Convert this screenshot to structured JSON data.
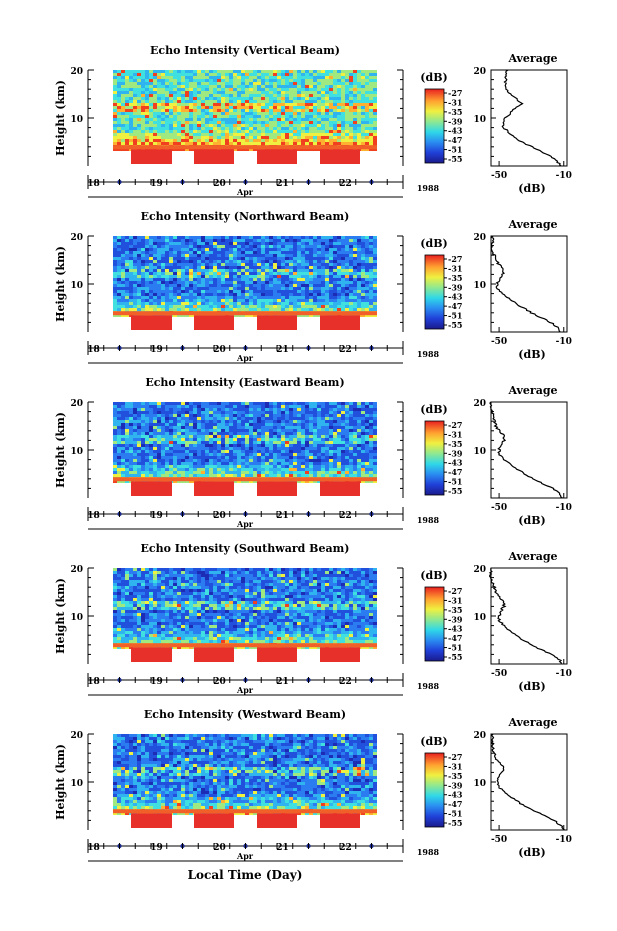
{
  "figure": {
    "xlabel": "Local Time (Day)",
    "year": "1988",
    "month": "Apr",
    "day_ticks": [
      "18",
      "19",
      "20",
      "21",
      "22"
    ],
    "colorbar_unit": "(dB)",
    "colorbar_ticks": [
      "-27",
      "-31",
      "-35",
      "-39",
      "-43",
      "-47",
      "-51",
      "-55"
    ],
    "colors": {
      "high": "#e8302a",
      "mid": "#ffd23a",
      "low": "#1a1aa0",
      "line": "#000000"
    }
  },
  "chart_data": [
    {
      "type": "heatmap",
      "title": "Echo Intensity (Vertical Beam)",
      "ylabel": "Height (km)",
      "ylim": [
        0,
        20
      ],
      "yticks": [
        10,
        20
      ],
      "xlim": [
        17.5,
        22.5
      ],
      "xticks": [
        18,
        19,
        20,
        21,
        22
      ],
      "colorbar": {
        "label": "(dB)",
        "range": [
          -55,
          -27
        ]
      },
      "average_profile": {
        "title": "Average",
        "xlabel": "(dB)",
        "xticks": [
          -50,
          -10
        ],
        "ylim": [
          0,
          20
        ],
        "yticks": [
          10,
          20
        ],
        "height_km": [
          0,
          1,
          2,
          3,
          4,
          5,
          6,
          7,
          8,
          9,
          10,
          11,
          12,
          13,
          14,
          15,
          16,
          17,
          18,
          19,
          20
        ],
        "db": [
          -12,
          -14,
          -18,
          -24,
          -30,
          -36,
          -40,
          -44,
          -47,
          -48,
          -46,
          -43,
          -40,
          -36,
          -39,
          -43,
          -45,
          -46,
          -46,
          -46,
          -45
        ]
      }
    },
    {
      "type": "heatmap",
      "title": "Echo Intensity (Northward Beam)",
      "ylabel": "Height (km)",
      "ylim": [
        0,
        20
      ],
      "yticks": [
        10,
        20
      ],
      "xlim": [
        17.5,
        22.5
      ],
      "xticks": [
        18,
        19,
        20,
        21,
        22
      ],
      "colorbar": {
        "label": "(dB)",
        "range": [
          -55,
          -27
        ]
      },
      "average_profile": {
        "title": "Average",
        "xlabel": "(dB)",
        "xticks": [
          -50,
          -10
        ],
        "ylim": [
          0,
          20
        ],
        "yticks": [
          10,
          20
        ],
        "height_km": [
          0,
          1,
          2,
          3,
          4,
          5,
          6,
          7,
          8,
          9,
          10,
          11,
          12,
          13,
          14,
          15,
          16,
          17,
          18,
          19,
          20
        ],
        "db": [
          -12,
          -14,
          -18,
          -24,
          -30,
          -35,
          -40,
          -44,
          -48,
          -51,
          -51,
          -50,
          -48,
          -47,
          -50,
          -52,
          -53,
          -54,
          -54,
          -54,
          -54
        ]
      }
    },
    {
      "type": "heatmap",
      "title": "Echo Intensity (Eastward Beam)",
      "ylabel": "Height (km)",
      "ylim": [
        0,
        20
      ],
      "yticks": [
        10,
        20
      ],
      "xlim": [
        17.5,
        22.5
      ],
      "xticks": [
        18,
        19,
        20,
        21,
        22
      ],
      "colorbar": {
        "label": "(dB)",
        "range": [
          -55,
          -27
        ]
      },
      "average_profile": {
        "title": "Average",
        "xlabel": "(dB)",
        "xticks": [
          -50,
          -10
        ],
        "ylim": [
          0,
          20
        ],
        "yticks": [
          10,
          20
        ],
        "height_km": [
          0,
          1,
          2,
          3,
          4,
          5,
          6,
          7,
          8,
          9,
          10,
          11,
          12,
          13,
          14,
          15,
          16,
          17,
          18,
          19,
          20
        ],
        "db": [
          -11,
          -13,
          -17,
          -23,
          -29,
          -34,
          -39,
          -43,
          -47,
          -50,
          -50,
          -49,
          -47,
          -47,
          -50,
          -52,
          -53,
          -54,
          -54,
          -55,
          -55
        ]
      }
    },
    {
      "type": "heatmap",
      "title": "Echo Intensity (Southward Beam)",
      "ylabel": "Height (km)",
      "ylim": [
        0,
        20
      ],
      "yticks": [
        10,
        20
      ],
      "xlim": [
        17.5,
        22.5
      ],
      "xticks": [
        18,
        19,
        20,
        21,
        22
      ],
      "colorbar": {
        "label": "(dB)",
        "range": [
          -55,
          -27
        ]
      },
      "average_profile": {
        "title": "Average",
        "xlabel": "(dB)",
        "xticks": [
          -50,
          -10
        ],
        "ylim": [
          0,
          20
        ],
        "yticks": [
          10,
          20
        ],
        "height_km": [
          0,
          1,
          2,
          3,
          4,
          5,
          6,
          7,
          8,
          9,
          10,
          11,
          12,
          13,
          14,
          15,
          16,
          17,
          18,
          19,
          20
        ],
        "db": [
          -11,
          -13,
          -18,
          -24,
          -30,
          -35,
          -40,
          -44,
          -47,
          -50,
          -50,
          -49,
          -47,
          -47,
          -50,
          -52,
          -53,
          -54,
          -55,
          -55,
          -55
        ]
      }
    },
    {
      "type": "heatmap",
      "title": "Echo Intensity (Westward Beam)",
      "ylabel": "Height (km)",
      "ylim": [
        0,
        20
      ],
      "yticks": [
        10,
        20
      ],
      "xlim": [
        17.5,
        22.5
      ],
      "xticks": [
        18,
        19,
        20,
        21,
        22
      ],
      "colorbar": {
        "label": "(dB)",
        "range": [
          -55,
          -27
        ]
      },
      "average_profile": {
        "title": "Average",
        "xlabel": "(dB)",
        "xticks": [
          -50,
          -10
        ],
        "ylim": [
          0,
          20
        ],
        "yticks": [
          10,
          20
        ],
        "height_km": [
          0,
          1,
          2,
          3,
          4,
          5,
          6,
          7,
          8,
          9,
          10,
          11,
          12,
          13,
          14,
          15,
          16,
          17,
          18,
          19,
          20
        ],
        "db": [
          -10,
          -12,
          -16,
          -22,
          -28,
          -34,
          -39,
          -43,
          -47,
          -50,
          -51,
          -50,
          -48,
          -47,
          -50,
          -52,
          -53,
          -54,
          -54,
          -54,
          -54
        ]
      }
    }
  ]
}
